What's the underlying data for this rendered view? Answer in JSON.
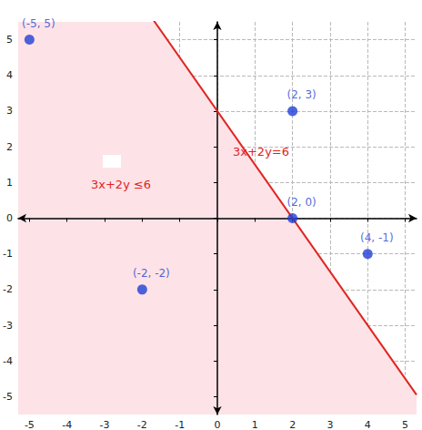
{
  "chart_data": {
    "type": "scatter",
    "xlim": [
      -5.3,
      5.3
    ],
    "ylim": [
      -5.5,
      5.5
    ],
    "xticks": [
      -5,
      -4,
      -3,
      -2,
      -1,
      0,
      1,
      2,
      3,
      4,
      5
    ],
    "yticks": [
      -5,
      -4,
      -3,
      -2,
      -1,
      0,
      1,
      2,
      3,
      4,
      5
    ],
    "grid": true,
    "points": {
      "x": [
        -5,
        2,
        2,
        4,
        -2
      ],
      "y": [
        5,
        3,
        0,
        -1,
        -2
      ],
      "labels": [
        "(-5, 5)",
        "(2, 3)",
        "(2, 0)",
        "(4, -1)",
        "(-2, -2)"
      ],
      "color": "#1f3fd6"
    },
    "line": {
      "a": 3,
      "b": 2,
      "c": 6,
      "label": "3x+2y=6",
      "color": "#e0251f"
    },
    "region": {
      "label": "3x+2y ≤6",
      "color": "#fde3e7"
    }
  }
}
